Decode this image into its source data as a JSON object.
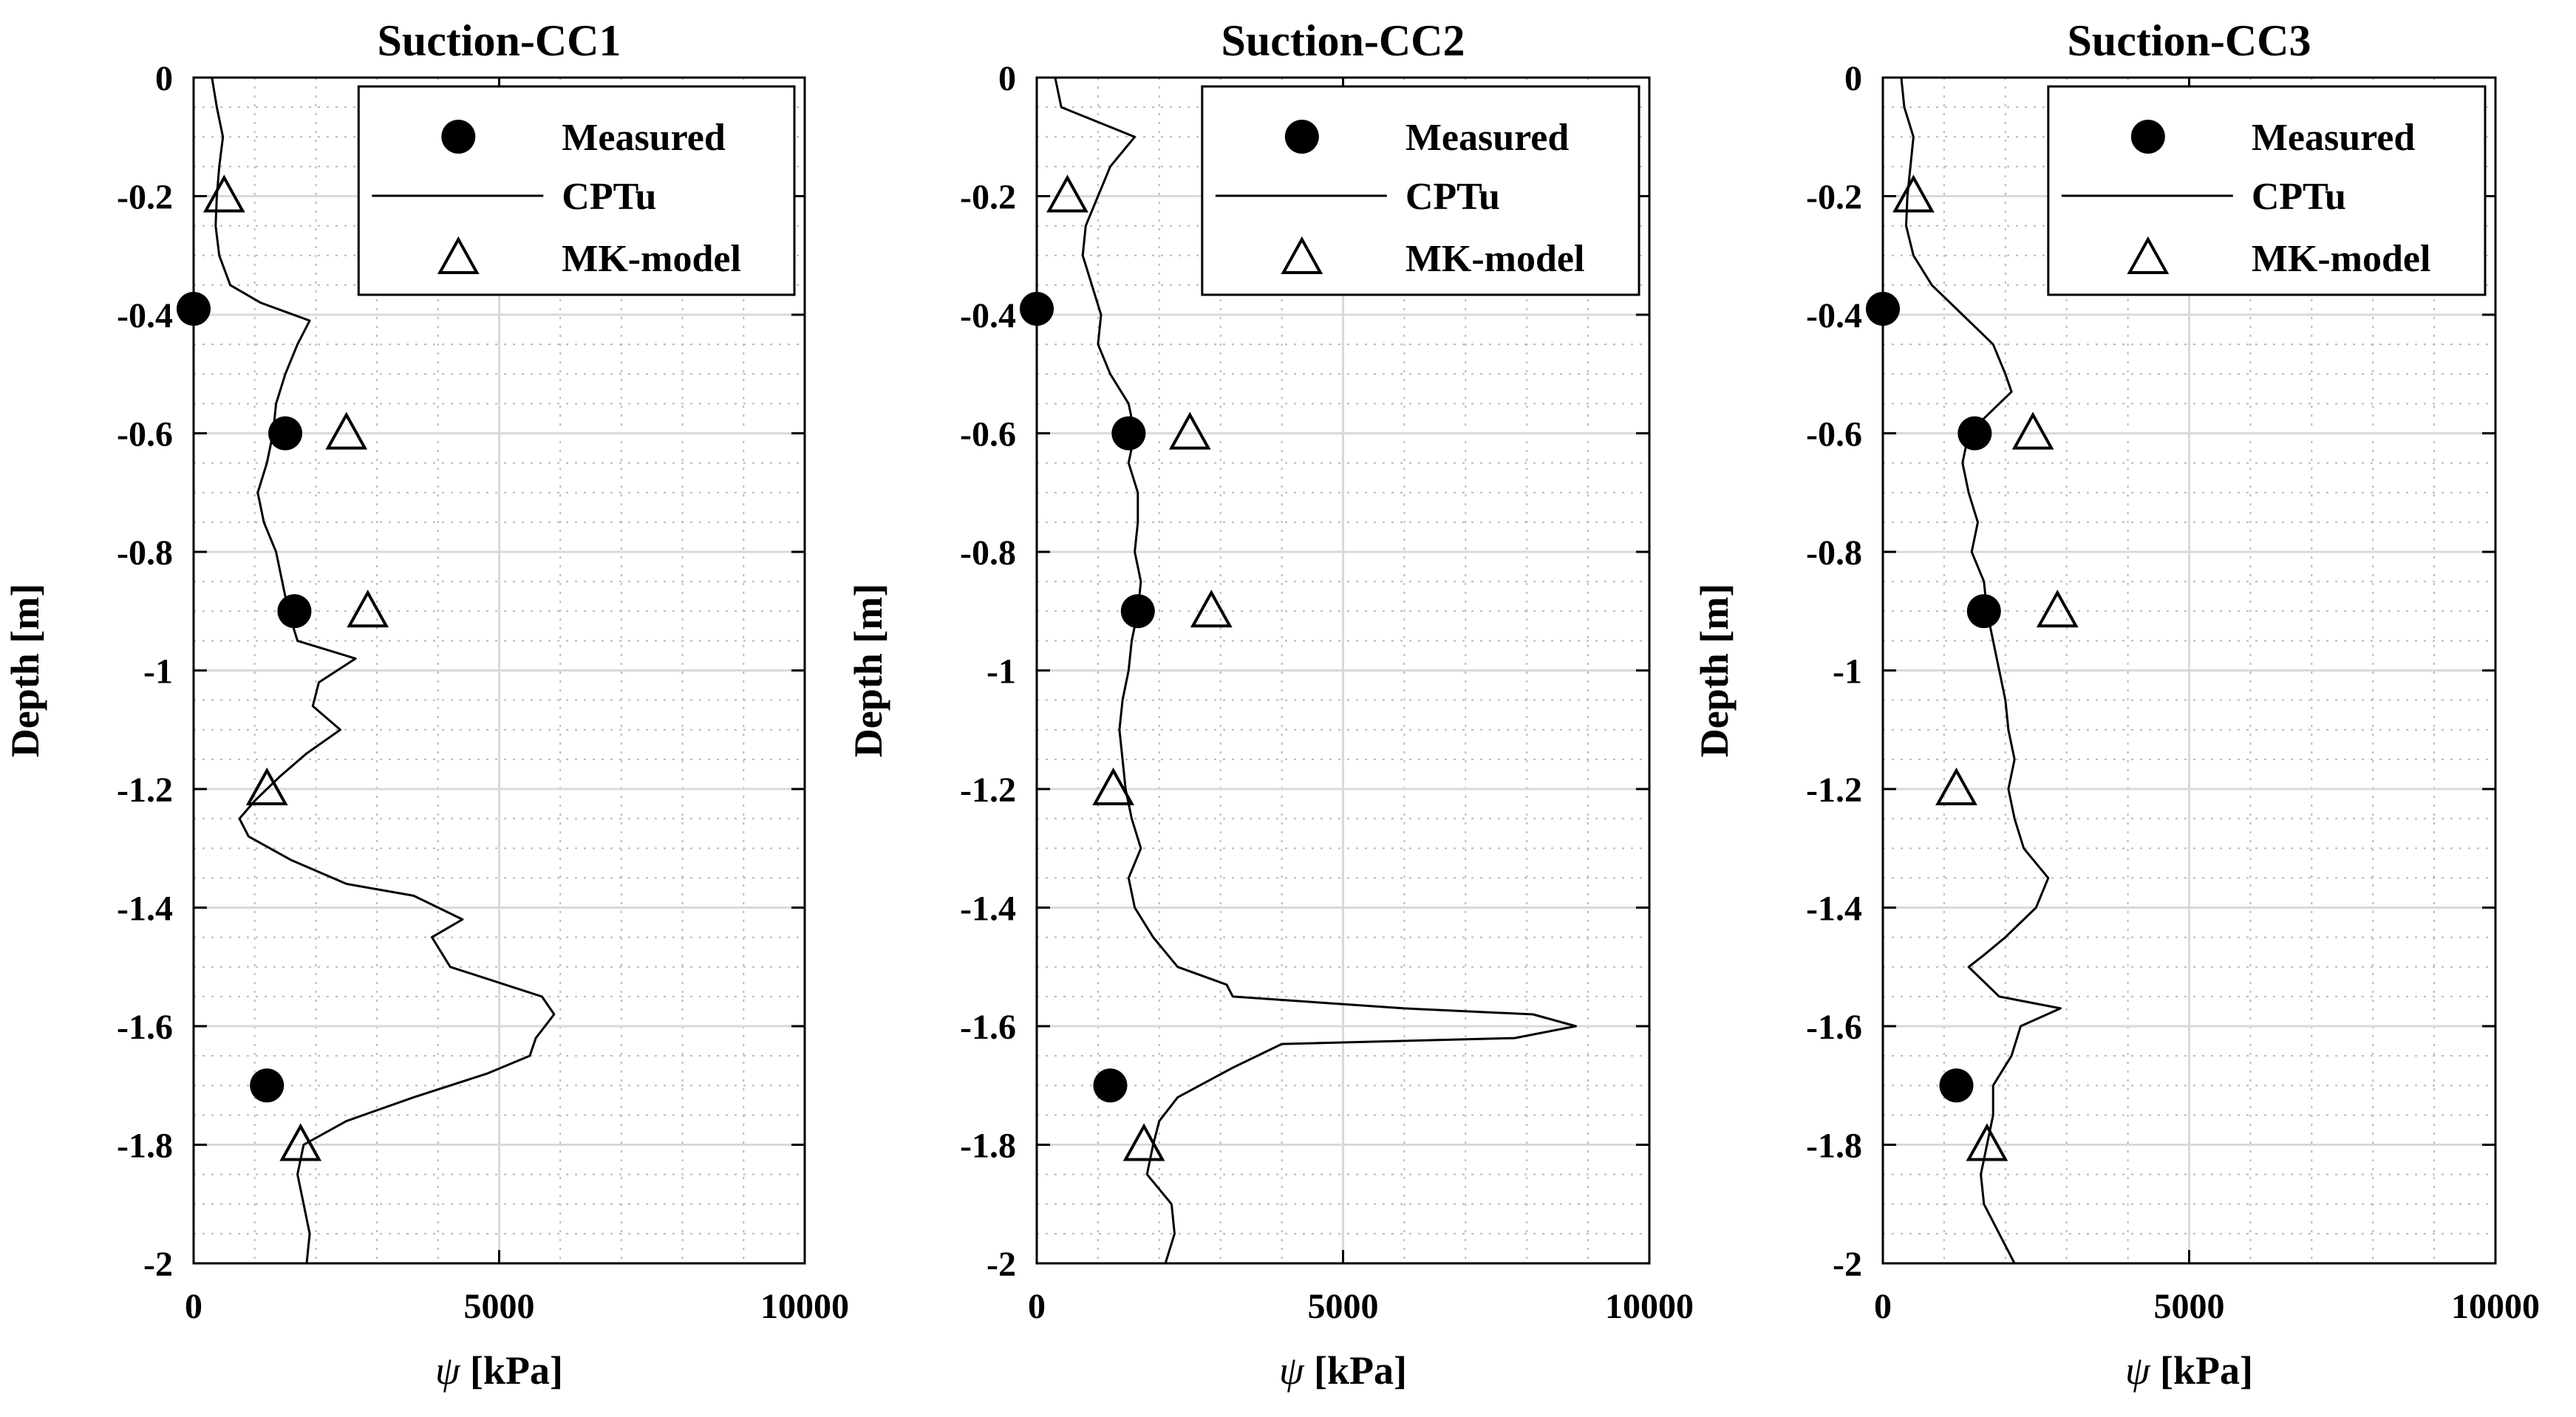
{
  "figure": {
    "x_unit": "[kPa]"
  },
  "chart_data": [
    {
      "type": "line",
      "title": "Suction-CC1",
      "xlabel": "ψ [kPa]",
      "ylabel": "Depth [m]",
      "xlim": [
        0,
        10000
      ],
      "ylim": [
        -2,
        0
      ],
      "xticks": [
        0,
        5000,
        10000
      ],
      "yticks": [
        0,
        -0.2,
        -0.4,
        -0.6,
        -0.8,
        -1,
        -1.2,
        -1.4,
        -1.6,
        -1.8,
        -2
      ],
      "legend": {
        "placement": "top-right",
        "entries": [
          "Measured",
          "CPTu",
          "MK-model"
        ]
      },
      "grid": true,
      "series": [
        {
          "name": "Measured",
          "style": "marker-circle-filled",
          "points": [
            [
              0,
              -0.39
            ],
            [
              1500,
              -0.6
            ],
            [
              1650,
              -0.9
            ],
            [
              1200,
              -1.7
            ]
          ]
        },
        {
          "name": "CPTu",
          "style": "line",
          "points": [
            [
              300,
              0
            ],
            [
              380,
              -0.05
            ],
            [
              480,
              -0.1
            ],
            [
              420,
              -0.15
            ],
            [
              380,
              -0.2
            ],
            [
              360,
              -0.25
            ],
            [
              420,
              -0.3
            ],
            [
              600,
              -0.35
            ],
            [
              1100,
              -0.38
            ],
            [
              1900,
              -0.41
            ],
            [
              1700,
              -0.45
            ],
            [
              1500,
              -0.5
            ],
            [
              1350,
              -0.55
            ],
            [
              1300,
              -0.6
            ],
            [
              1200,
              -0.65
            ],
            [
              1050,
              -0.7
            ],
            [
              1150,
              -0.75
            ],
            [
              1350,
              -0.8
            ],
            [
              1450,
              -0.85
            ],
            [
              1550,
              -0.9
            ],
            [
              1700,
              -0.95
            ],
            [
              2650,
              -0.98
            ],
            [
              2050,
              -1.02
            ],
            [
              1950,
              -1.06
            ],
            [
              2400,
              -1.1
            ],
            [
              1850,
              -1.14
            ],
            [
              1400,
              -1.18
            ],
            [
              1000,
              -1.22
            ],
            [
              750,
              -1.25
            ],
            [
              900,
              -1.28
            ],
            [
              1600,
              -1.32
            ],
            [
              2500,
              -1.36
            ],
            [
              3600,
              -1.38
            ],
            [
              4400,
              -1.42
            ],
            [
              3900,
              -1.45
            ],
            [
              4200,
              -1.5
            ],
            [
              5700,
              -1.55
            ],
            [
              5900,
              -1.58
            ],
            [
              5600,
              -1.62
            ],
            [
              5500,
              -1.65
            ],
            [
              4800,
              -1.68
            ],
            [
              3600,
              -1.72
            ],
            [
              2500,
              -1.76
            ],
            [
              1800,
              -1.8
            ],
            [
              1700,
              -1.85
            ],
            [
              1800,
              -1.9
            ],
            [
              1900,
              -1.95
            ],
            [
              1850,
              -2
            ]
          ]
        },
        {
          "name": "MK-model",
          "style": "marker-triangle-open",
          "points": [
            [
              500,
              -0.2
            ],
            [
              2500,
              -0.6
            ],
            [
              2850,
              -0.9
            ],
            [
              1200,
              -1.2
            ],
            [
              1750,
              -1.8
            ]
          ]
        }
      ]
    },
    {
      "type": "line",
      "title": "Suction-CC2",
      "xlabel": "ψ [kPa]",
      "ylabel": "Depth [m]",
      "xlim": [
        0,
        10000
      ],
      "ylim": [
        -2,
        0
      ],
      "xticks": [
        0,
        5000,
        10000
      ],
      "yticks": [
        0,
        -0.2,
        -0.4,
        -0.6,
        -0.8,
        -1,
        -1.2,
        -1.4,
        -1.6,
        -1.8,
        -2
      ],
      "legend": {
        "placement": "top-right",
        "entries": [
          "Measured",
          "CPTu",
          "MK-model"
        ]
      },
      "grid": true,
      "series": [
        {
          "name": "Measured",
          "style": "marker-circle-filled",
          "points": [
            [
              0,
              -0.39
            ],
            [
              1500,
              -0.6
            ],
            [
              1650,
              -0.9
            ],
            [
              1200,
              -1.7
            ]
          ]
        },
        {
          "name": "CPTu",
          "style": "line",
          "points": [
            [
              300,
              0
            ],
            [
              400,
              -0.05
            ],
            [
              1600,
              -0.1
            ],
            [
              1200,
              -0.15
            ],
            [
              1000,
              -0.2
            ],
            [
              800,
              -0.25
            ],
            [
              750,
              -0.3
            ],
            [
              900,
              -0.35
            ],
            [
              1050,
              -0.4
            ],
            [
              1000,
              -0.45
            ],
            [
              1200,
              -0.5
            ],
            [
              1500,
              -0.55
            ],
            [
              1600,
              -0.6
            ],
            [
              1500,
              -0.65
            ],
            [
              1650,
              -0.7
            ],
            [
              1650,
              -0.75
            ],
            [
              1600,
              -0.8
            ],
            [
              1700,
              -0.85
            ],
            [
              1650,
              -0.9
            ],
            [
              1550,
              -0.95
            ],
            [
              1500,
              -1
            ],
            [
              1400,
              -1.05
            ],
            [
              1350,
              -1.1
            ],
            [
              1400,
              -1.15
            ],
            [
              1450,
              -1.2
            ],
            [
              1550,
              -1.25
            ],
            [
              1700,
              -1.3
            ],
            [
              1500,
              -1.35
            ],
            [
              1600,
              -1.4
            ],
            [
              1900,
              -1.45
            ],
            [
              2300,
              -1.5
            ],
            [
              3100,
              -1.53
            ],
            [
              3200,
              -1.55
            ],
            [
              6000,
              -1.57
            ],
            [
              8100,
              -1.58
            ],
            [
              8800,
              -1.6
            ],
            [
              7800,
              -1.62
            ],
            [
              4000,
              -1.63
            ],
            [
              3200,
              -1.67
            ],
            [
              2300,
              -1.72
            ],
            [
              2000,
              -1.76
            ],
            [
              1900,
              -1.8
            ],
            [
              1800,
              -1.85
            ],
            [
              2200,
              -1.9
            ],
            [
              2250,
              -1.95
            ],
            [
              2100,
              -2
            ]
          ]
        },
        {
          "name": "MK-model",
          "style": "marker-triangle-open",
          "points": [
            [
              500,
              -0.2
            ],
            [
              2500,
              -0.6
            ],
            [
              2850,
              -0.9
            ],
            [
              1250,
              -1.2
            ],
            [
              1750,
              -1.8
            ]
          ]
        }
      ]
    },
    {
      "type": "line",
      "title": "Suction-CC3",
      "xlabel": "ψ [kPa]",
      "ylabel": "Depth [m]",
      "xlim": [
        0,
        10000
      ],
      "ylim": [
        -2,
        0
      ],
      "xticks": [
        0,
        5000,
        10000
      ],
      "yticks": [
        0,
        -0.2,
        -0.4,
        -0.6,
        -0.8,
        -1,
        -1.2,
        -1.4,
        -1.6,
        -1.8,
        -2
      ],
      "legend": {
        "placement": "top-right",
        "entries": [
          "Measured",
          "CPTu",
          "MK-model"
        ]
      },
      "grid": true,
      "series": [
        {
          "name": "Measured",
          "style": "marker-circle-filled",
          "points": [
            [
              0,
              -0.39
            ],
            [
              1500,
              -0.6
            ],
            [
              1650,
              -0.9
            ],
            [
              1200,
              -1.7
            ]
          ]
        },
        {
          "name": "CPTu",
          "style": "line",
          "points": [
            [
              300,
              0
            ],
            [
              350,
              -0.05
            ],
            [
              500,
              -0.1
            ],
            [
              450,
              -0.15
            ],
            [
              400,
              -0.2
            ],
            [
              380,
              -0.25
            ],
            [
              500,
              -0.3
            ],
            [
              800,
              -0.35
            ],
            [
              1300,
              -0.4
            ],
            [
              1800,
              -0.45
            ],
            [
              2000,
              -0.5
            ],
            [
              2100,
              -0.53
            ],
            [
              1700,
              -0.57
            ],
            [
              1400,
              -0.6
            ],
            [
              1300,
              -0.65
            ],
            [
              1400,
              -0.7
            ],
            [
              1550,
              -0.75
            ],
            [
              1450,
              -0.8
            ],
            [
              1650,
              -0.85
            ],
            [
              1700,
              -0.9
            ],
            [
              1800,
              -0.95
            ],
            [
              1900,
              -1
            ],
            [
              2000,
              -1.05
            ],
            [
              2050,
              -1.1
            ],
            [
              2150,
              -1.15
            ],
            [
              2050,
              -1.2
            ],
            [
              2150,
              -1.25
            ],
            [
              2300,
              -1.3
            ],
            [
              2700,
              -1.35
            ],
            [
              2500,
              -1.4
            ],
            [
              2000,
              -1.45
            ],
            [
              1650,
              -1.48
            ],
            [
              1400,
              -1.5
            ],
            [
              1900,
              -1.55
            ],
            [
              2900,
              -1.57
            ],
            [
              2250,
              -1.6
            ],
            [
              2100,
              -1.65
            ],
            [
              1800,
              -1.7
            ],
            [
              1800,
              -1.75
            ],
            [
              1700,
              -1.8
            ],
            [
              1600,
              -1.85
            ],
            [
              1650,
              -1.9
            ],
            [
              1900,
              -1.95
            ],
            [
              2150,
              -2
            ]
          ]
        },
        {
          "name": "MK-model",
          "style": "marker-triangle-open",
          "points": [
            [
              500,
              -0.2
            ],
            [
              2450,
              -0.6
            ],
            [
              2850,
              -0.9
            ],
            [
              1200,
              -1.2
            ],
            [
              1700,
              -1.8
            ]
          ]
        }
      ]
    }
  ]
}
